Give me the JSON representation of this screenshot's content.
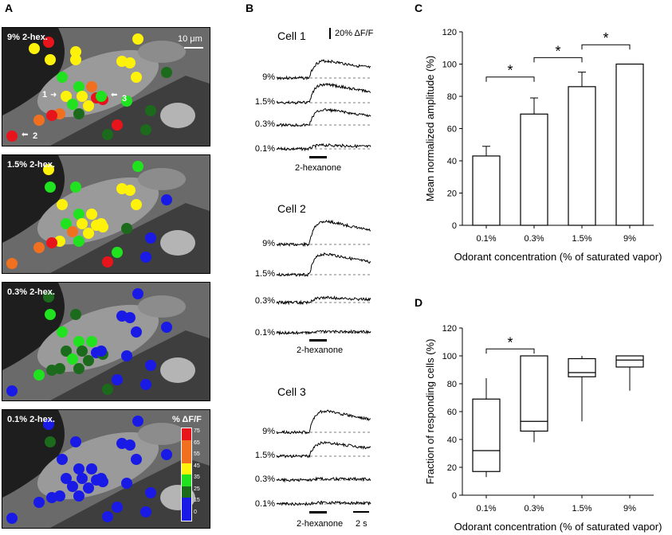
{
  "panel_letters": {
    "a": "A",
    "b": "B",
    "c": "C",
    "d": "D"
  },
  "panel_a": {
    "panels": [
      {
        "label": "9% 2-hex."
      },
      {
        "label": "1.5% 2-hex."
      },
      {
        "label": "0.3% 2-hex."
      },
      {
        "label": "0.1% 2-hex."
      }
    ],
    "scale_bar": "10 μm",
    "cell_markers": [
      "1",
      "2",
      "3"
    ],
    "colorbar": {
      "title": "% ΔF/F",
      "ticks": [
        "75",
        "65",
        "55",
        "45",
        "35",
        "25",
        "15",
        "0"
      ],
      "colors": {
        "red": "#e8141b",
        "orange": "#f07020",
        "yellow": "#fff20a",
        "green": "#21e21f",
        "dark_green": "#1c6a1c",
        "blue": "#1a1ae6"
      }
    }
  },
  "panel_b": {
    "scale_label": "20% ΔF/F",
    "cells": [
      {
        "title": "Cell 1",
        "concentrations": [
          "9%",
          "1.5%",
          "0.3%",
          "0.1%"
        ],
        "stimulus": "2-hexanone"
      },
      {
        "title": "Cell 2",
        "concentrations": [
          "9%",
          "1.5%",
          "0.3%",
          "0.1%"
        ],
        "stimulus": "2-hexanone"
      },
      {
        "title": "Cell 3",
        "concentrations": [
          "9%",
          "1.5%",
          "0.3%",
          "0.1%"
        ],
        "stimulus": "2-hexanone"
      }
    ],
    "time_scale": "2 s"
  },
  "chart_data": [
    {
      "type": "bar",
      "panel": "C",
      "categories": [
        "0.1%",
        "0.3%",
        "1.5%",
        "9%"
      ],
      "values": [
        43,
        69,
        86,
        100
      ],
      "errors": [
        6,
        10,
        9,
        0
      ],
      "ylabel": "Mean normalized amplitude (%)",
      "xlabel": "Odorant concentration (% of saturated vapor)",
      "ylim": [
        0,
        120
      ],
      "yticks": [
        "0",
        "20",
        "40",
        "60",
        "80",
        "100",
        "120"
      ],
      "significance": [
        {
          "from": 0,
          "to": 1,
          "label": "*"
        },
        {
          "from": 1,
          "to": 2,
          "label": "*"
        },
        {
          "from": 2,
          "to": 3,
          "label": "*"
        }
      ]
    },
    {
      "type": "box",
      "panel": "D",
      "categories": [
        "0.1%",
        "0.3%",
        "1.5%",
        "9%"
      ],
      "boxes": [
        {
          "min": 13,
          "q1": 17,
          "median": 32,
          "q3": 69,
          "max": 84
        },
        {
          "min": 38,
          "q1": 46,
          "median": 53,
          "q3": 100,
          "max": 100
        },
        {
          "min": 53,
          "q1": 85,
          "median": 88,
          "q3": 98,
          "max": 100
        },
        {
          "min": 75,
          "q1": 92,
          "median": 97,
          "q3": 100,
          "max": 100
        }
      ],
      "ylabel": "Fraction of responding cells (%)",
      "xlabel": "Odorant concentration (% of saturated vapor)",
      "ylim": [
        0,
        120
      ],
      "yticks": [
        "0",
        "20",
        "40",
        "60",
        "80",
        "100",
        "120"
      ],
      "significance": [
        {
          "from": 0,
          "to": 1,
          "label": "*"
        }
      ]
    }
  ]
}
